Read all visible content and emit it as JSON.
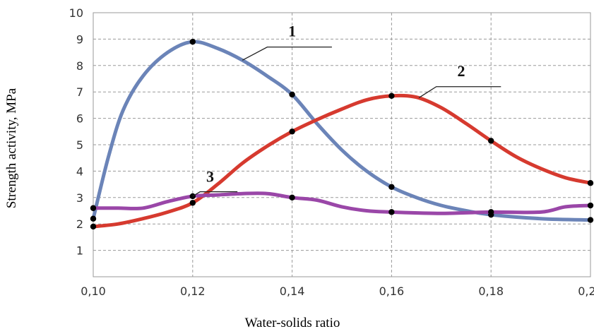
{
  "chart_data": {
    "type": "line",
    "xlabel": "Water-solids ratio",
    "ylabel": "Strength activity, MPa",
    "xlim": [
      0.1,
      0.2
    ],
    "ylim": [
      0,
      10
    ],
    "x_ticks": [
      "0,10",
      "0,12",
      "0,14",
      "0,16",
      "0,18",
      "0,20"
    ],
    "y_ticks": [
      "1",
      "2",
      "3",
      "4",
      "5",
      "6",
      "7",
      "8",
      "9",
      "10"
    ],
    "grid": true,
    "series": [
      {
        "name": "1",
        "color": "#6b84b8",
        "points": [
          [
            0.1,
            2.2
          ],
          [
            0.12,
            8.9
          ],
          [
            0.14,
            6.9
          ],
          [
            0.16,
            3.4
          ],
          [
            0.18,
            2.35
          ],
          [
            0.2,
            2.15
          ]
        ],
        "curve": [
          [
            0.1,
            2.2
          ],
          [
            0.103,
            4.5
          ],
          [
            0.106,
            6.3
          ],
          [
            0.11,
            7.6
          ],
          [
            0.115,
            8.5
          ],
          [
            0.12,
            8.9
          ],
          [
            0.125,
            8.65
          ],
          [
            0.13,
            8.2
          ],
          [
            0.135,
            7.6
          ],
          [
            0.14,
            6.9
          ],
          [
            0.145,
            5.8
          ],
          [
            0.15,
            4.8
          ],
          [
            0.155,
            4.0
          ],
          [
            0.16,
            3.4
          ],
          [
            0.165,
            3.0
          ],
          [
            0.17,
            2.7
          ],
          [
            0.175,
            2.5
          ],
          [
            0.18,
            2.35
          ],
          [
            0.19,
            2.2
          ],
          [
            0.2,
            2.15
          ]
        ]
      },
      {
        "name": "2",
        "color": "#d63a2f",
        "points": [
          [
            0.1,
            1.9
          ],
          [
            0.12,
            2.8
          ],
          [
            0.14,
            5.5
          ],
          [
            0.16,
            6.85
          ],
          [
            0.18,
            5.15
          ],
          [
            0.2,
            3.55
          ]
        ],
        "curve": [
          [
            0.1,
            1.9
          ],
          [
            0.105,
            2.0
          ],
          [
            0.11,
            2.2
          ],
          [
            0.115,
            2.45
          ],
          [
            0.12,
            2.8
          ],
          [
            0.125,
            3.5
          ],
          [
            0.13,
            4.3
          ],
          [
            0.135,
            4.95
          ],
          [
            0.14,
            5.5
          ],
          [
            0.145,
            5.95
          ],
          [
            0.15,
            6.35
          ],
          [
            0.155,
            6.7
          ],
          [
            0.16,
            6.85
          ],
          [
            0.165,
            6.8
          ],
          [
            0.17,
            6.4
          ],
          [
            0.175,
            5.8
          ],
          [
            0.18,
            5.15
          ],
          [
            0.185,
            4.55
          ],
          [
            0.19,
            4.1
          ],
          [
            0.195,
            3.75
          ],
          [
            0.2,
            3.55
          ]
        ]
      },
      {
        "name": "3",
        "color": "#9a47a8",
        "points": [
          [
            0.1,
            2.6
          ],
          [
            0.12,
            3.05
          ],
          [
            0.14,
            3.0
          ],
          [
            0.16,
            2.45
          ],
          [
            0.18,
            2.45
          ],
          [
            0.2,
            2.7
          ]
        ],
        "curve": [
          [
            0.1,
            2.6
          ],
          [
            0.105,
            2.6
          ],
          [
            0.11,
            2.6
          ],
          [
            0.115,
            2.85
          ],
          [
            0.12,
            3.05
          ],
          [
            0.125,
            3.1
          ],
          [
            0.13,
            3.15
          ],
          [
            0.135,
            3.15
          ],
          [
            0.14,
            3.0
          ],
          [
            0.145,
            2.9
          ],
          [
            0.15,
            2.65
          ],
          [
            0.155,
            2.5
          ],
          [
            0.16,
            2.45
          ],
          [
            0.17,
            2.4
          ],
          [
            0.18,
            2.45
          ],
          [
            0.19,
            2.45
          ],
          [
            0.195,
            2.65
          ],
          [
            0.2,
            2.7
          ]
        ]
      }
    ],
    "annotations": [
      "1",
      "2",
      "3"
    ]
  }
}
